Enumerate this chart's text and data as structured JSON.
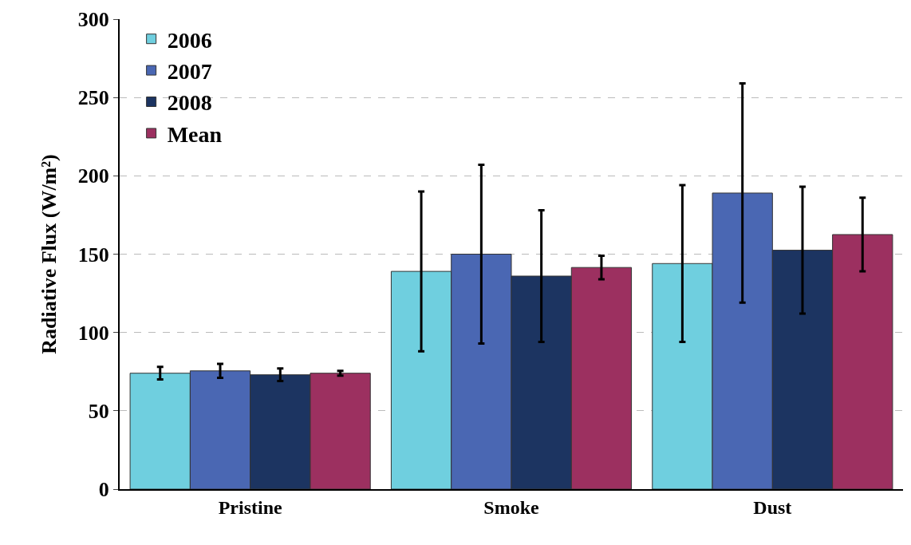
{
  "chart_data": {
    "type": "bar",
    "ylabel": "Radiative Flux (W/m²)",
    "categories": [
      "Pristine",
      "Smoke",
      "Dust"
    ],
    "series": [
      {
        "name": "2006",
        "color": "#6fcfdf",
        "values": [
          74,
          139,
          144
        ],
        "errors": [
          4,
          51,
          50
        ]
      },
      {
        "name": "2007",
        "color": "#4a67b3",
        "values": [
          75.5,
          150,
          189
        ],
        "errors": [
          4.5,
          57,
          70
        ]
      },
      {
        "name": "2008",
        "color": "#1c3461",
        "values": [
          73,
          136,
          152.5
        ],
        "errors": [
          4,
          42,
          40.5
        ]
      },
      {
        "name": "Mean",
        "color": "#9c3060",
        "values": [
          74,
          141.5,
          162.5
        ],
        "errors": [
          1.5,
          7.5,
          23.5
        ]
      }
    ],
    "ylim": [
      0,
      300
    ],
    "yticks": [
      0,
      50,
      100,
      150,
      200,
      250,
      300
    ],
    "grid": "y",
    "legend": "top left"
  }
}
